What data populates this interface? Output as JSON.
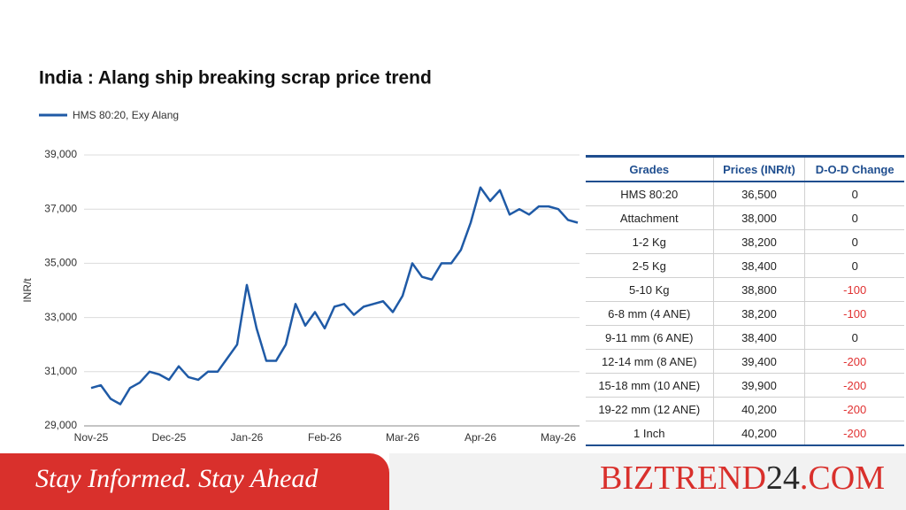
{
  "chart_data": {
    "type": "line",
    "title": "India : Alang ship breaking scrap price trend",
    "y_label": "INR/t",
    "categories": [
      "Nov-25",
      null,
      null,
      null,
      null,
      null,
      null,
      null,
      "Dec-25",
      null,
      null,
      null,
      null,
      null,
      null,
      null,
      "Jan-26",
      null,
      null,
      null,
      null,
      null,
      null,
      null,
      "Feb-26",
      null,
      null,
      null,
      null,
      null,
      null,
      null,
      "Mar-26",
      null,
      null,
      null,
      null,
      null,
      null,
      null,
      "Apr-26",
      null,
      null,
      null,
      null,
      null,
      null,
      null,
      "May-26",
      null,
      null
    ],
    "series": [
      {
        "name": "HMS 80:20, Exy Alang",
        "color": "#1f5aa6",
        "values": [
          30400,
          30500,
          30000,
          29800,
          30400,
          30600,
          31000,
          30900,
          30700,
          31200,
          30800,
          30700,
          31000,
          31000,
          31500,
          32000,
          34200,
          32600,
          31400,
          31400,
          32000,
          33500,
          32700,
          33200,
          32600,
          33400,
          33500,
          33100,
          33400,
          33500,
          33600,
          33200,
          33800,
          35000,
          34500,
          34400,
          35000,
          35000,
          35500,
          36500,
          37800,
          37300,
          37700,
          36800,
          37000,
          36800,
          37100,
          37100,
          37000,
          36600,
          36500
        ]
      }
    ],
    "ylim": [
      29000,
      39000
    ],
    "yticks": [
      {
        "value": 29000,
        "label": "29,000"
      },
      {
        "value": 31000,
        "label": "31,000"
      },
      {
        "value": 33000,
        "label": "33,000"
      },
      {
        "value": 35000,
        "label": "35,000"
      },
      {
        "value": 37000,
        "label": "37,000"
      },
      {
        "value": 39000,
        "label": "39,000"
      }
    ],
    "grid": true
  },
  "table": {
    "header": [
      "Grades",
      "Prices (INR/t)",
      "D-O-D Change"
    ],
    "rows": [
      [
        "HMS 80:20",
        "36,500",
        "0"
      ],
      [
        "Attachment",
        "38,000",
        "0"
      ],
      [
        "1-2 Kg",
        "38,200",
        "0"
      ],
      [
        "2-5 Kg",
        "38,400",
        "0"
      ],
      [
        "5-10 Kg",
        "38,800",
        "-100"
      ],
      [
        "6-8 mm (4 ANE)",
        "38,200",
        "-100"
      ],
      [
        "9-11 mm (6 ANE)",
        "38,400",
        "0"
      ],
      [
        "12-14 mm (8 ANE)",
        "39,400",
        "-200"
      ],
      [
        "15-18 mm (10 ANE)",
        "39,900",
        "-200"
      ],
      [
        "19-22 mm (12 ANE)",
        "40,200",
        "-200"
      ],
      [
        "1 Inch",
        "40,200",
        "-200"
      ]
    ]
  },
  "banner": {
    "tagline": "Stay Informed. Stay Ahead",
    "brand_name": "BIZTREND",
    "brand_number": "24",
    "brand_suffix": ".COM"
  }
}
